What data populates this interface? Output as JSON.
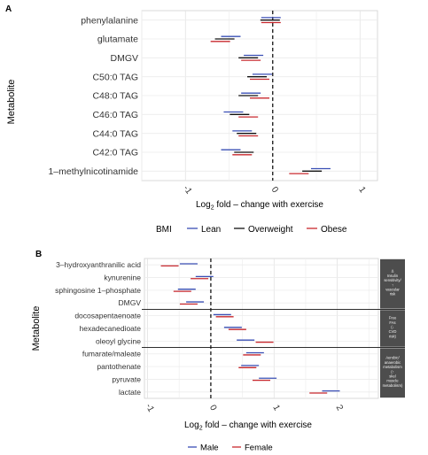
{
  "chart_data": [
    {
      "panel": "A",
      "type": "forest",
      "ylabel": "Metabolite",
      "xlabel": "Log2 fold – change with exercise",
      "xlabel_parts": {
        "pre": "Log",
        "sub": "2",
        "post": " fold – change with exercise"
      },
      "xlim": [
        -1.5,
        1.2
      ],
      "xticks": [
        -1,
        0,
        1
      ],
      "xtick_labels": [
        "-1",
        "0",
        "1"
      ],
      "grid": true,
      "legend": {
        "title": "BMI",
        "position": "bottom",
        "entries": [
          "Lean",
          "Overweight",
          "Obese"
        ]
      },
      "series_colors": {
        "Lean": "#3a4fb5",
        "Overweight": "#111111",
        "Obese": "#c8282e"
      },
      "categories": [
        "phenylalanine",
        "glutamate",
        "DMGV",
        "C50:0 TAG",
        "C48:0 TAG",
        "C46:0 TAG",
        "C44:0 TAG",
        "C42:0 TAG",
        "1–methylnicotinamide"
      ],
      "series": [
        {
          "name": "Lean",
          "values": [
            -0.02,
            -0.48,
            -0.22,
            -0.12,
            -0.25,
            -0.45,
            -0.35,
            -0.48,
            0.55
          ]
        },
        {
          "name": "Overweight",
          "values": [
            -0.03,
            -0.55,
            -0.28,
            -0.18,
            -0.28,
            -0.38,
            -0.3,
            -0.33,
            0.45
          ]
        },
        {
          "name": "Obese",
          "values": [
            -0.02,
            -0.6,
            -0.25,
            -0.15,
            -0.15,
            -0.28,
            -0.28,
            -0.35,
            0.3
          ]
        }
      ]
    },
    {
      "panel": "B",
      "type": "forest",
      "ylabel": "Metabolite",
      "xlabel": "Log2 fold – change with exercise",
      "xlabel_parts": {
        "pre": "Log",
        "sub": "2",
        "post": " fold – change with exercise"
      },
      "xlim": [
        -1.05,
        2.65
      ],
      "xticks": [
        -1,
        0,
        1,
        2
      ],
      "xtick_labels": [
        "-1",
        "0",
        "1",
        "2"
      ],
      "grid": true,
      "legend": {
        "position": "bottom",
        "entries": [
          "Male",
          "Female"
        ]
      },
      "series_colors": {
        "Male": "#3a4fb5",
        "Female": "#c8282e"
      },
      "categories": [
        "3–hydroxyanthranilic acid",
        "kynurenine",
        "sphingosine 1–phosphate",
        "DMGV",
        "docosapentaenoate",
        "hexadecanedioate",
        "oleoyl glycine",
        "fumarate/maleate",
        "pantothenate",
        "pyruvate",
        "lactate"
      ],
      "series": [
        {
          "name": "Male",
          "values": [
            -0.35,
            -0.1,
            -0.38,
            -0.25,
            0.18,
            0.35,
            0.55,
            0.7,
            0.62,
            0.9,
            1.9
          ]
        },
        {
          "name": "Female",
          "values": [
            -0.65,
            -0.18,
            -0.45,
            -0.35,
            0.22,
            0.42,
            0.85,
            0.65,
            0.58,
            0.8,
            1.7
          ]
        }
      ],
      "groups": [
        {
          "label": "Δ Insulin sensitivity/ ↑ vascular risk",
          "rows": [
            0,
            3
          ]
        },
        {
          "label": "Free FAs (↓ CVD risk)",
          "rows": [
            4,
            6
          ]
        },
        {
          "label": "Aerobic/ anaerobic metabolism (↑ skel muscle metabolism)",
          "rows": [
            7,
            10
          ]
        }
      ]
    }
  ]
}
